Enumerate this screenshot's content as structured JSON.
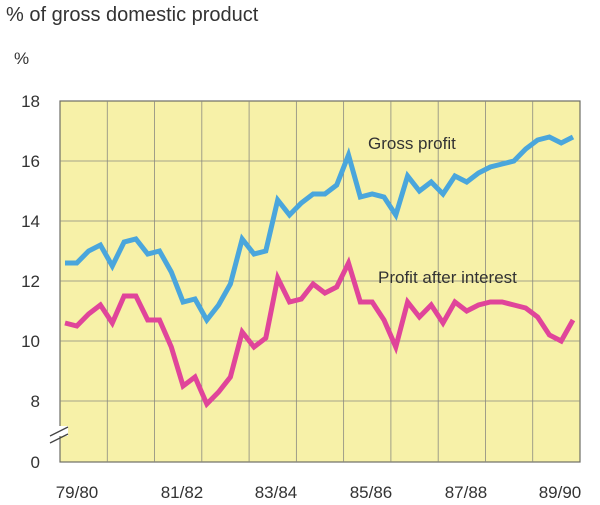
{
  "chart_data": {
    "type": "line",
    "title": "% of gross domestic product",
    "ylabel": "%",
    "xlabel": "",
    "ylim": [
      0,
      18
    ],
    "y_axis_break": true,
    "y_ticks": [
      0,
      8,
      10,
      12,
      14,
      16,
      18
    ],
    "x_ticks": [
      "79/80",
      "81/82",
      "83/84",
      "85/86",
      "87/88",
      "89/90"
    ],
    "grid": true,
    "colors": {
      "background": "#f7f1a8",
      "grid": "#8a8a80",
      "gross": "#4aa6dc",
      "after_interest": "#e0459a"
    },
    "series": [
      {
        "name": "Gross profit",
        "values": [
          12.6,
          12.6,
          13.0,
          13.2,
          12.5,
          13.3,
          13.4,
          12.9,
          13.0,
          12.3,
          11.3,
          11.4,
          10.7,
          11.2,
          11.9,
          13.4,
          12.9,
          13.0,
          14.7,
          14.2,
          14.6,
          14.9,
          14.9,
          15.2,
          16.2,
          14.8,
          14.9,
          14.8,
          14.2,
          15.5,
          15.0,
          15.3,
          14.9,
          15.5,
          15.3,
          15.6,
          15.8,
          15.9,
          16.0,
          16.4,
          16.7,
          16.8,
          16.6,
          16.8
        ]
      },
      {
        "name": "Profit after interest",
        "values": [
          10.6,
          10.5,
          10.9,
          11.2,
          10.6,
          11.5,
          11.5,
          10.7,
          10.7,
          9.8,
          8.5,
          8.8,
          7.9,
          8.3,
          8.8,
          10.3,
          9.8,
          10.1,
          12.1,
          11.3,
          11.4,
          11.9,
          11.6,
          11.8,
          12.6,
          11.3,
          11.3,
          10.7,
          9.8,
          11.3,
          10.8,
          11.2,
          10.6,
          11.3,
          11.0,
          11.2,
          11.3,
          11.3,
          11.2,
          11.1,
          10.8,
          10.2,
          10.0,
          10.7
        ]
      }
    ]
  }
}
